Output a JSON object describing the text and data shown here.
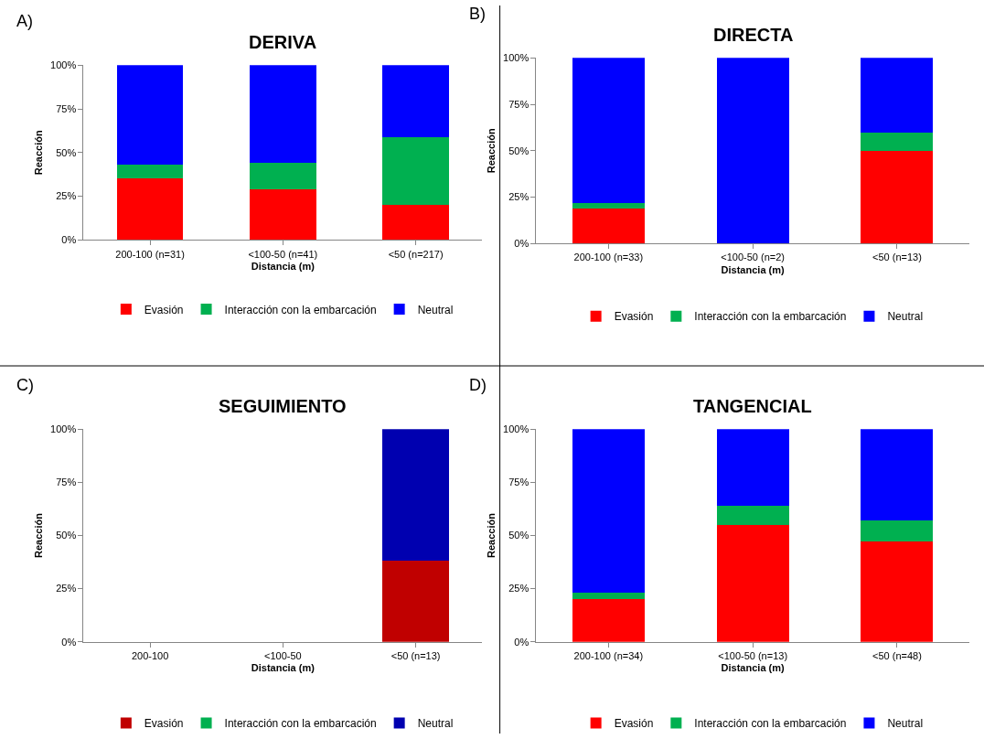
{
  "chart_data": [
    {
      "type": "bar",
      "title": "DERIVA",
      "annotations": [
        "A)"
      ],
      "xlabel": "Distancia (m)",
      "ylabel": "Reacción",
      "categories": [
        "200-100 (n=31)",
        "<100-50 (n=41)",
        "<50 (n=217)"
      ],
      "stacked": true,
      "ylim": [
        0,
        100
      ],
      "yticks": [
        {
          "value": 0,
          "label": "0%"
        },
        {
          "value": 25,
          "label": "25%"
        },
        {
          "value": 50,
          "label": "50%"
        },
        {
          "value": 75,
          "label": "75%"
        },
        {
          "value": 100,
          "label": "100%"
        }
      ],
      "legend": "bottom",
      "grid": false,
      "series": [
        {
          "name": "Evasión",
          "color": "#ff0000",
          "values": [
            35,
            29,
            20
          ]
        },
        {
          "name": "Interacción con la embarcación",
          "color": "#00b050",
          "values": [
            8,
            15,
            39
          ]
        },
        {
          "name": "Neutral",
          "color": "#0000ff",
          "values": [
            57,
            56,
            41
          ]
        }
      ]
    },
    {
      "type": "bar",
      "title": "DIRECTA",
      "annotations": [
        "B)"
      ],
      "xlabel": "Distancia (m)",
      "ylabel": "Reacción",
      "categories": [
        "200-100 (n=33)",
        "<100-50 (n=2)",
        "<50 (n=13)"
      ],
      "stacked": true,
      "ylim": [
        0,
        100
      ],
      "yticks": [
        {
          "value": 0,
          "label": "0%"
        },
        {
          "value": 25,
          "label": "25%"
        },
        {
          "value": 50,
          "label": "50%"
        },
        {
          "value": 75,
          "label": "75%"
        },
        {
          "value": 100,
          "label": "100%"
        }
      ],
      "legend": "bottom",
      "grid": false,
      "series": [
        {
          "name": "Evasión",
          "color": "#ff0000",
          "values": [
            19,
            0,
            50
          ]
        },
        {
          "name": "Interacción con la embarcación",
          "color": "#00b050",
          "values": [
            3,
            0,
            10
          ]
        },
        {
          "name": "Neutral",
          "color": "#0000ff",
          "values": [
            78,
            100,
            40
          ]
        }
      ]
    },
    {
      "type": "bar",
      "title": "SEGUIMIENTO",
      "annotations": [
        "C)"
      ],
      "xlabel": "Distancia (m)",
      "ylabel": "Reacción",
      "categories": [
        "200-100",
        "<100-50",
        "<50 (n=13)"
      ],
      "stacked": true,
      "ylim": [
        0,
        100
      ],
      "yticks": [
        {
          "value": 0,
          "label": "0%"
        },
        {
          "value": 25,
          "label": "25%"
        },
        {
          "value": 50,
          "label": "50%"
        },
        {
          "value": 75,
          "label": "75%"
        },
        {
          "value": 100,
          "label": "100%"
        }
      ],
      "legend": "bottom",
      "grid": false,
      "series": [
        {
          "name": "Evasión",
          "color": "#c00000",
          "values": [
            0,
            0,
            38
          ]
        },
        {
          "name": "Interacción con la embarcación",
          "color": "#00b050",
          "values": [
            0,
            0,
            0
          ]
        },
        {
          "name": "Neutral",
          "color": "#0000b0",
          "values": [
            0,
            0,
            62
          ]
        }
      ]
    },
    {
      "type": "bar",
      "title": "TANGENCIAL",
      "annotations": [
        "D)"
      ],
      "xlabel": "Distancia (m)",
      "ylabel": "Reacción",
      "categories": [
        "200-100 (n=34)",
        "<100-50 (n=13)",
        "<50 (n=48)"
      ],
      "stacked": true,
      "ylim": [
        0,
        100
      ],
      "yticks": [
        {
          "value": 0,
          "label": "0%"
        },
        {
          "value": 25,
          "label": "25%"
        },
        {
          "value": 50,
          "label": "50%"
        },
        {
          "value": 75,
          "label": "75%"
        },
        {
          "value": 100,
          "label": "100%"
        }
      ],
      "legend": "bottom",
      "grid": false,
      "series": [
        {
          "name": "Evasión",
          "color": "#ff0000",
          "values": [
            20,
            55,
            47
          ]
        },
        {
          "name": "Interacción con la embarcación",
          "color": "#00b050",
          "values": [
            3,
            9,
            10
          ]
        },
        {
          "name": "Neutral",
          "color": "#0000ff",
          "values": [
            77,
            36,
            43
          ]
        }
      ]
    }
  ]
}
